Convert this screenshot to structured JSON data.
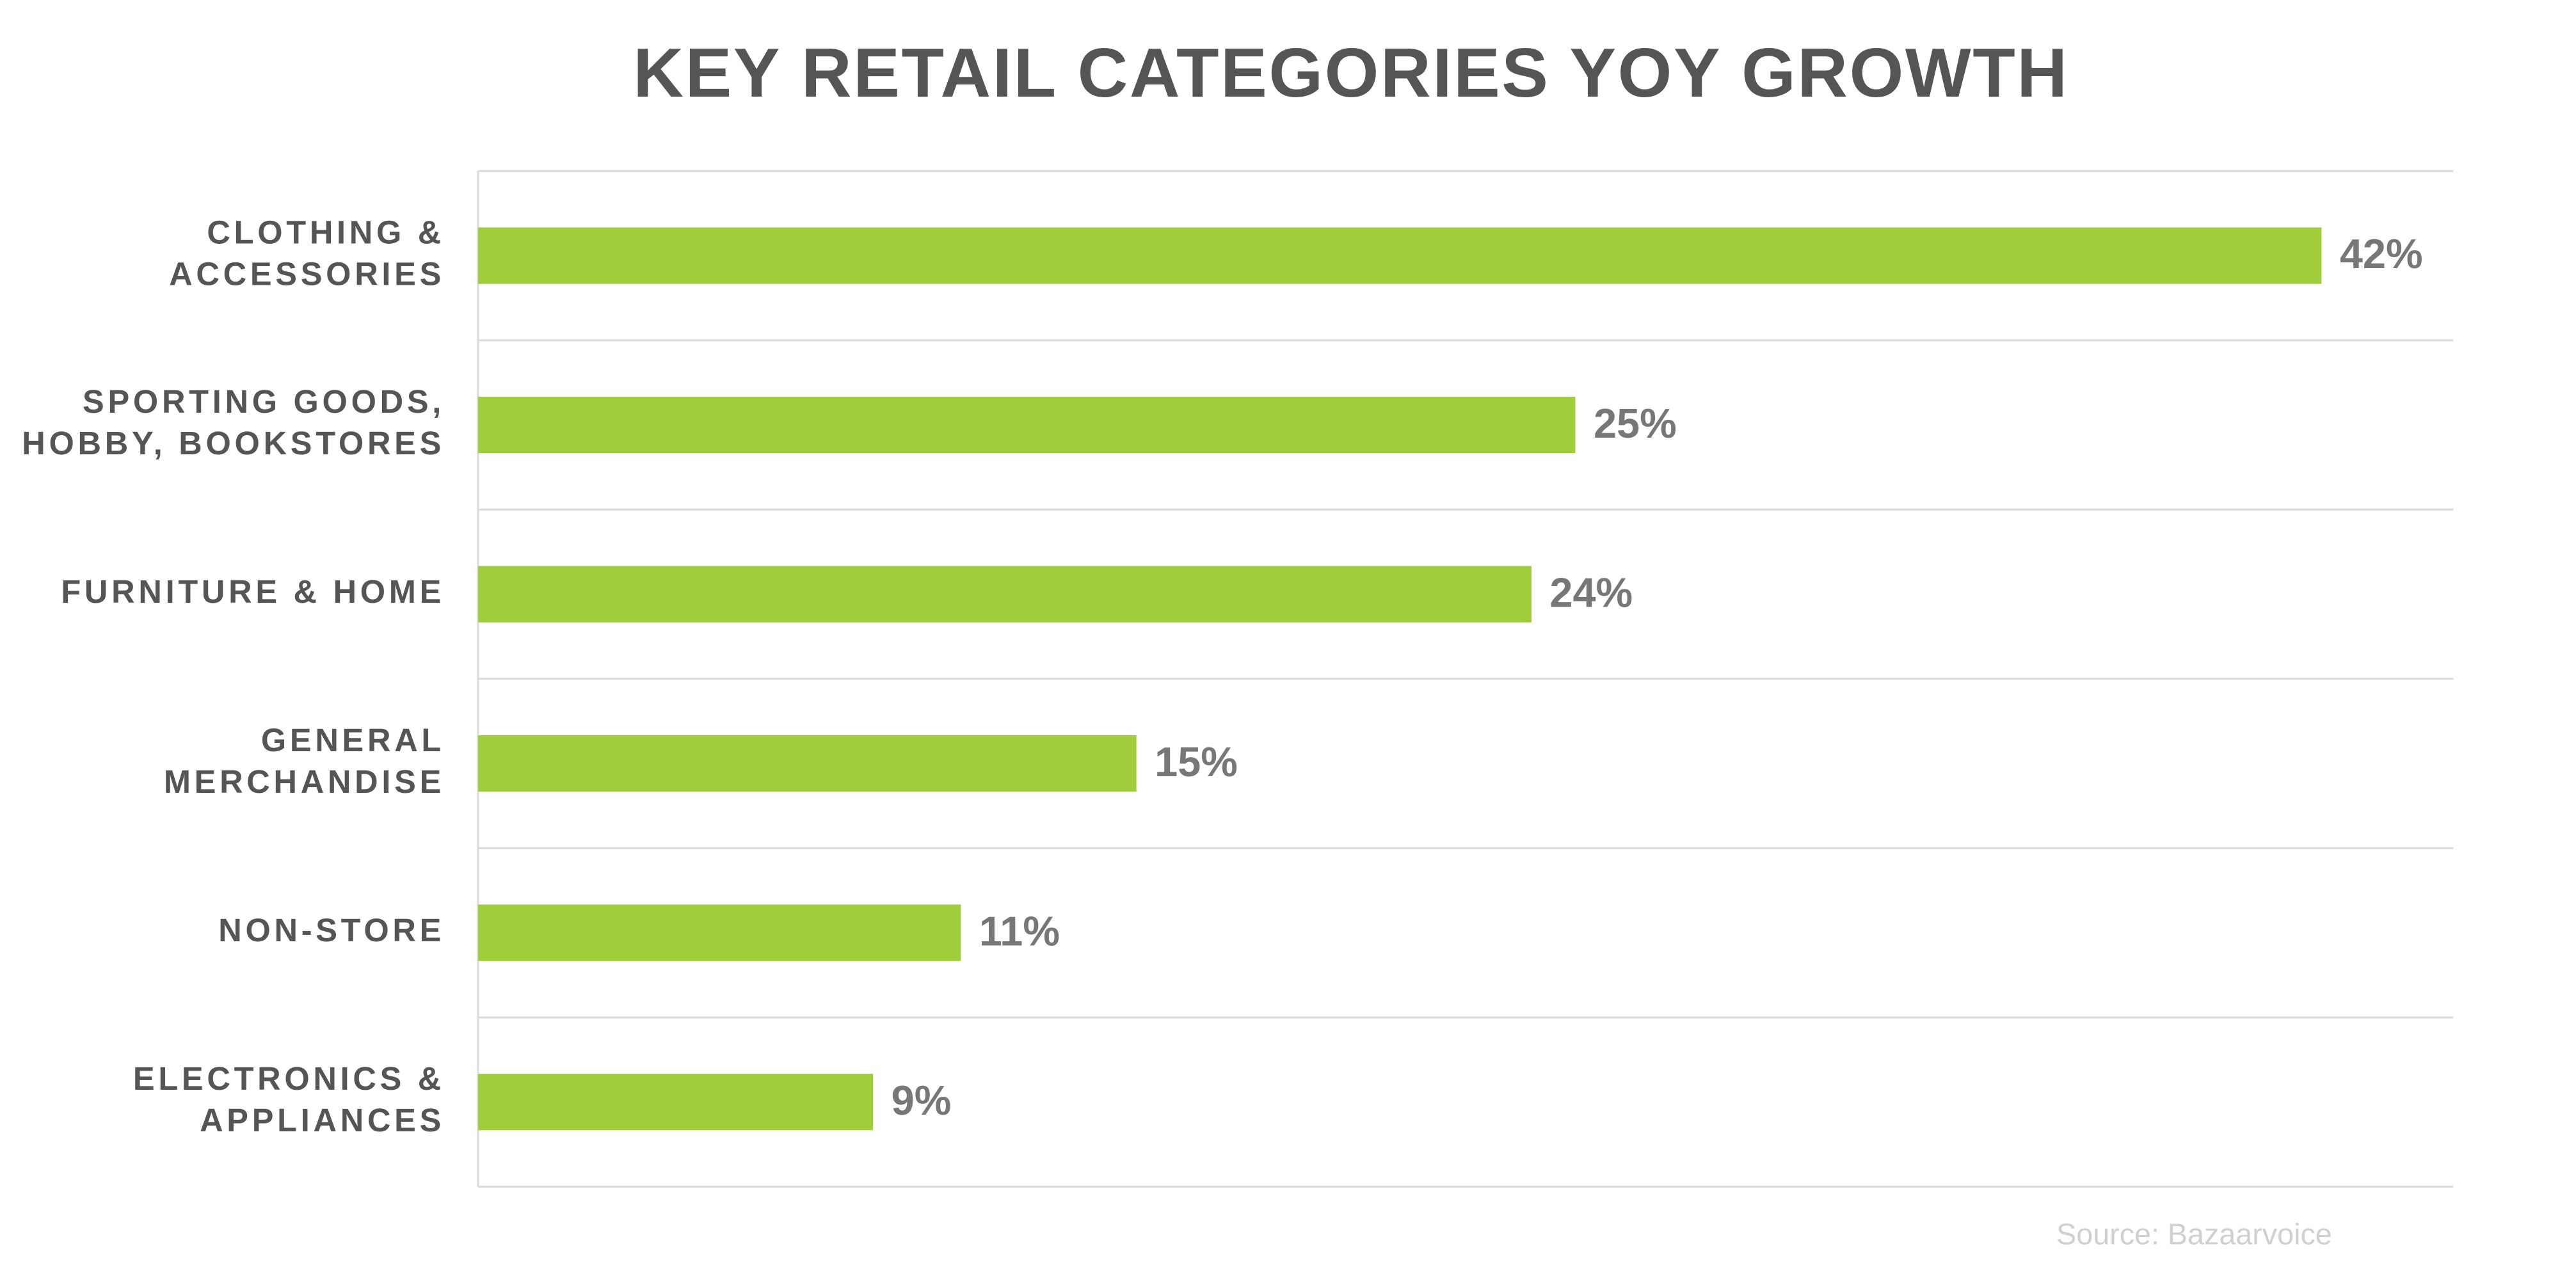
{
  "chart_data": {
    "type": "bar",
    "orientation": "horizontal",
    "title": "KEY RETAIL CATEGORIES YOY GROWTH",
    "categories": [
      [
        "CLOTHING &",
        "ACCESSORIES"
      ],
      [
        "SPORTING GOODS,",
        "HOBBY, BOOKSTORES"
      ],
      [
        "FURNITURE & HOME"
      ],
      [
        "GENERAL",
        "MERCHANDISE"
      ],
      [
        "NON-STORE"
      ],
      [
        "ELECTRONICS &",
        "APPLIANCES"
      ]
    ],
    "values": [
      42,
      25,
      24,
      15,
      11,
      9
    ],
    "value_labels": [
      "42%",
      "25%",
      "24%",
      "15%",
      "11%",
      "9%"
    ],
    "color": "#a0cd3a",
    "xlim": [
      0,
      45
    ],
    "source": "Source: Bazaarvoice"
  }
}
